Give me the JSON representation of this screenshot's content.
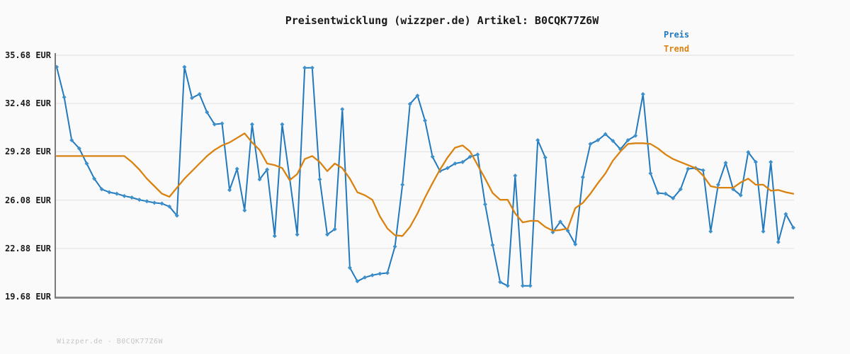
{
  "title": "Preisentwicklung (wizzper.de) Artikel: B0CQK77Z6W",
  "watermark": "Wizzper.de - B0CQK77Z6W",
  "legend": {
    "preis_label": "Preis",
    "trend_label": "Trend"
  },
  "colors": {
    "preis": "#2279bd",
    "preis_marker": "#3e90cb",
    "trend": "#d9820f",
    "grid": "#e4e4e4",
    "axis": "#7a7a7a",
    "background": "#fafafa",
    "text": "#1a1a1a",
    "watermark": "#c6c6c6"
  },
  "chart_data": {
    "type": "line",
    "title": "Preisentwicklung (wizzper.de) Artikel: B0CQK77Z6W",
    "xlabel": "",
    "ylabel": "",
    "ylim": [
      19.68,
      35.68
    ],
    "y_ticks": [
      35.68,
      32.48,
      29.28,
      26.08,
      22.88,
      19.68
    ],
    "y_tick_labels": [
      "35.68 EUR",
      "32.48 EUR",
      "29.28 EUR",
      "26.08 EUR",
      "22.88 EUR",
      "19.68 EUR"
    ],
    "x_tick_labels": [],
    "grid": true,
    "legend_position": "top-right",
    "series": [
      {
        "name": "Preis",
        "color": "#2279bd",
        "markers": true,
        "values": [
          34.9,
          32.9,
          30.05,
          29.5,
          28.5,
          27.5,
          26.8,
          26.6,
          26.5,
          26.35,
          26.25,
          26.1,
          26.0,
          25.9,
          25.85,
          25.65,
          25.05,
          34.9,
          32.85,
          33.1,
          31.9,
          31.1,
          31.15,
          26.75,
          28.15,
          25.4,
          31.1,
          27.45,
          28.1,
          23.7,
          31.1,
          27.5,
          23.8,
          34.85,
          34.85,
          27.45,
          23.8,
          24.15,
          32.1,
          21.6,
          20.7,
          20.95,
          21.1,
          21.2,
          21.25,
          23.0,
          27.1,
          32.45,
          33.0,
          31.35,
          28.95,
          28.0,
          28.2,
          28.5,
          28.6,
          28.95,
          29.1,
          25.8,
          23.1,
          20.65,
          20.4,
          27.7,
          20.4,
          20.4,
          30.05,
          28.9,
          23.95,
          24.65,
          24.05,
          23.15,
          27.6,
          29.8,
          30.05,
          30.45,
          30.0,
          29.45,
          30.05,
          30.35,
          33.1,
          27.85,
          26.55,
          26.5,
          26.2,
          26.8,
          28.15,
          28.2,
          28.05,
          24.0,
          27.1,
          28.55,
          26.8,
          26.4,
          29.25,
          28.6,
          24.0,
          28.6,
          23.3,
          25.15,
          24.25
        ]
      },
      {
        "name": "Trend",
        "color": "#d9820f",
        "markers": false,
        "values": [
          29.0,
          29.0,
          29.0,
          29.0,
          29.0,
          29.0,
          29.0,
          29.0,
          29.0,
          29.0,
          28.6,
          28.1,
          27.5,
          27.0,
          26.5,
          26.3,
          26.9,
          27.5,
          28.0,
          28.5,
          29.0,
          29.4,
          29.7,
          29.9,
          30.2,
          30.5,
          29.9,
          29.4,
          28.5,
          28.4,
          28.2,
          27.4,
          27.8,
          28.8,
          29.0,
          28.6,
          28.0,
          28.5,
          28.2,
          27.5,
          26.6,
          26.4,
          26.1,
          25.0,
          24.2,
          23.75,
          23.7,
          24.3,
          25.2,
          26.25,
          27.2,
          28.1,
          28.9,
          29.55,
          29.7,
          29.3,
          28.4,
          27.5,
          26.55,
          26.1,
          26.1,
          25.2,
          24.6,
          24.7,
          24.7,
          24.3,
          24.05,
          24.1,
          24.2,
          25.55,
          25.9,
          26.5,
          27.2,
          27.85,
          28.7,
          29.3,
          29.8,
          29.85,
          29.85,
          29.8,
          29.5,
          29.1,
          28.8,
          28.6,
          28.4,
          28.2,
          27.7,
          27.0,
          26.9,
          26.9,
          26.9,
          27.25,
          27.5,
          27.1,
          27.1,
          26.7,
          26.75,
          26.6,
          26.5
        ]
      }
    ]
  }
}
